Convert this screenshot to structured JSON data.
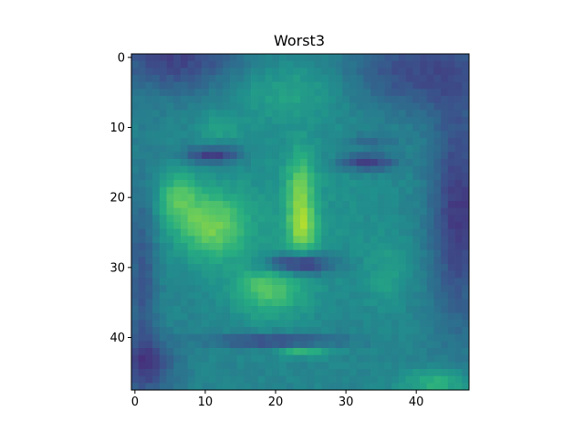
{
  "chart_data": {
    "type": "heatmap",
    "title": "Worst3",
    "xlabel": "",
    "ylabel": "",
    "colormap": "viridis",
    "grid": false,
    "rows": 48,
    "cols": 48,
    "xlim": [
      -0.5,
      47.5
    ],
    "ylim": [
      47.5,
      -0.5
    ],
    "x_ticks": [
      0,
      10,
      20,
      30,
      40
    ],
    "y_ticks": [
      0,
      10,
      20,
      30,
      40
    ],
    "x_tick_labels": [
      "0",
      "10",
      "20",
      "30",
      "40"
    ],
    "y_tick_labels": [
      "0",
      "10",
      "20",
      "30",
      "40"
    ],
    "value_range": [
      0,
      1
    ],
    "values_description": "48x48 grayscale face image; pixel intensities approximated by an analytic model in the render script"
  }
}
